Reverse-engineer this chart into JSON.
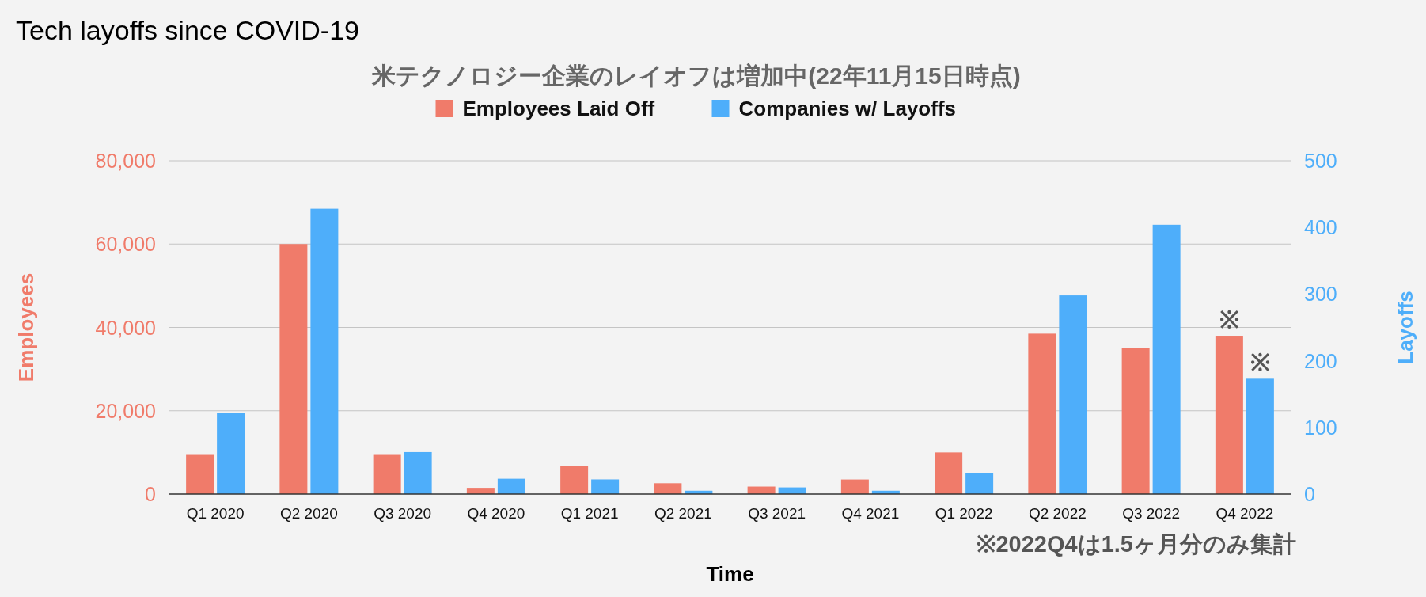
{
  "chart_data": {
    "type": "bar",
    "title": "Tech layoffs since COVID-19",
    "subtitle": "米テクノロジー企業のレイオフは増加中(22年11月15日時点)",
    "xlabel": "Time",
    "ylabel": "Employees",
    "y2label": "Layoffs",
    "categories": [
      "Q1 2020",
      "Q2 2020",
      "Q3 2020",
      "Q4 2020",
      "Q1 2021",
      "Q2 2021",
      "Q3 2021",
      "Q4 2021",
      "Q1 2022",
      "Q2 2022",
      "Q3 2022",
      "Q4 2022"
    ],
    "series": [
      {
        "name": "Employees Laid Off",
        "color": "#f07b6a",
        "values": [
          9400,
          60000,
          9400,
          1500,
          6800,
          2600,
          1800,
          3500,
          10000,
          38500,
          35000,
          38000
        ]
      },
      {
        "name": "Companies w/ Layoffs",
        "color": "#4eaefa",
        "axis": "y2",
        "values": [
          122,
          428,
          63,
          23,
          22,
          5,
          10,
          5,
          31,
          298,
          404,
          173
        ]
      }
    ],
    "ylim": [
      0,
      80000
    ],
    "yticks": [
      0,
      {
        "value": 20000,
        "label": "20,000"
      },
      {
        "value": 40000,
        "label": "40,000"
      },
      {
        "value": 60000,
        "label": "60,000"
      },
      {
        "value": 80000,
        "label": "80,000"
      }
    ],
    "y2lim": [
      0,
      500
    ],
    "y2ticks": [
      0,
      100,
      200,
      300,
      400,
      500
    ],
    "grid": "y",
    "legend": "top",
    "annotations": [
      {
        "text": "※",
        "x": "Q4 2022",
        "y": 38000
      },
      {
        "text": "※",
        "x": "Q4 2022",
        "y": 27700
      },
      "※2022Q4は1.5ヶ月分のみ集計"
    ]
  }
}
